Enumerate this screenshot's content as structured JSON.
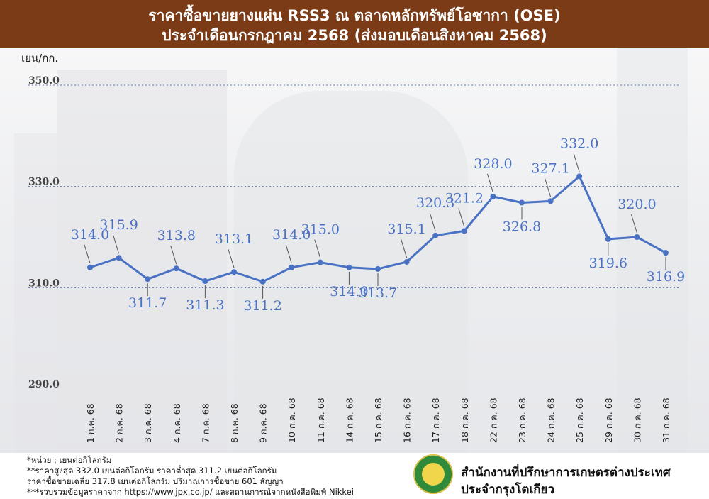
{
  "header": {
    "title_line1": "ราคาซื้อขายยางแผ่น RSS3 ณ ตลาดหลักทรัพย์โอซากา (OSE)",
    "title_line2": "ประจำเดือนกรกฎาคม 2568 (ส่งมอบเดือนสิงหาคม 2568)"
  },
  "chart_data": {
    "type": "line",
    "title": "ราคาซื้อขายยางแผ่น RSS3 ณ ตลาดหลักทรัพย์โอซากา (OSE) ประจำเดือนกรกฎาคม 2568 (ส่งมอบเดือนสิงหาคม 2568)",
    "ylabel": "เยน/กก.",
    "xlabel": "",
    "ylim": [
      290,
      350
    ],
    "yticks": [
      "350.0",
      "330.0",
      "310.0",
      "290.0"
    ],
    "grid": "horizontal dotted",
    "categories": [
      "1 ก.ค. 68",
      "2 ก.ค. 68",
      "3 ก.ค. 68",
      "4 ก.ค. 68",
      "7 ก.ค. 68",
      "8 ก.ค. 68",
      "9 ก.ค. 68",
      "10 ก.ค. 68",
      "11 ก.ค. 68",
      "14 ก.ค. 68",
      "15 ก.ค. 68",
      "16 ก.ค. 68",
      "17 ก.ค. 68",
      "18 ก.ค. 68",
      "22 ก.ค. 68",
      "23 ก.ค. 68",
      "24 ก.ค. 68",
      "25 ก.ค. 68",
      "29 ก.ค. 68",
      "30 ก.ค. 68",
      "31 ก.ค. 68"
    ],
    "values": [
      314.0,
      315.9,
      311.7,
      313.8,
      311.3,
      313.1,
      311.2,
      314.0,
      315.0,
      314.0,
      313.7,
      315.1,
      320.3,
      321.2,
      328.0,
      326.8,
      327.1,
      332.0,
      319.6,
      320.0,
      316.9
    ],
    "labels": [
      "314.0",
      "315.9",
      "311.7",
      "313.8",
      "311.3",
      "313.1",
      "311.2",
      "314.0",
      "315.0",
      "314.0",
      "313.7",
      "315.1",
      "320.3",
      "321.2",
      "328.0",
      "326.8",
      "327.1",
      "332.0",
      "319.6",
      "320.0",
      "316.9"
    ],
    "color": "#4a72c4"
  },
  "footer": {
    "note1": "*หน่วย ; เยนต่อกิโลกรัม",
    "note2": "**ราคาสูงสุด 332.0 เยนต่อกิโลกรัม ราคาต่ำสุด 311.2 เยนต่อกิโลกรัม",
    "note3": "ราคาซื้อขายเฉลี่ย 317.8 เยนต่อกิโลกรัม ปริมาณการซื้อขาย 601 สัญญา",
    "note4": "***รวบรวมข้อมูลราคาจาก https://www.jpx.co.jp/ และสถานการณ์จากหนังสือพิมพ์ Nikkei",
    "org_line1": "สำนักงานที่ปรึกษาการเกษตรต่างประเทศ",
    "org_line2": "ประจำกรุงโตเกียว"
  }
}
